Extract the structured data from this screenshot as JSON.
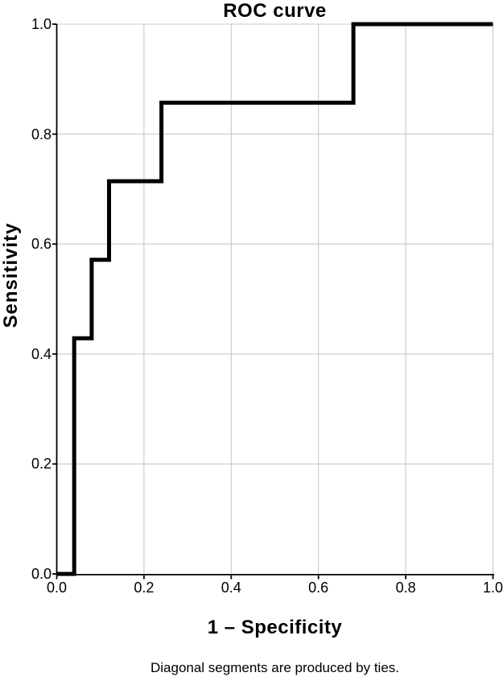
{
  "chart_data": {
    "type": "line",
    "subtype": "roc-step-curve",
    "title": "ROC curve",
    "xlabel": "1 – Specificity",
    "ylabel": "Sensitivity",
    "footnote": "Diagonal segments are produced by ties.",
    "x_tick_labels": [
      "0.0",
      "0.2",
      "0.4",
      "0.6",
      "0.8",
      "1.0"
    ],
    "y_tick_labels": [
      "0.0",
      "0.2",
      "0.4",
      "0.6",
      "0.8",
      "1.0"
    ],
    "xlim": [
      0.0,
      1.0
    ],
    "ylim": [
      0.0,
      1.0
    ],
    "grid": true,
    "legend_position": "none",
    "series": [
      {
        "name": "ROC curve",
        "points": [
          [
            0.0,
            0.0
          ],
          [
            0.04,
            0.0
          ],
          [
            0.04,
            0.4286
          ],
          [
            0.08,
            0.4286
          ],
          [
            0.08,
            0.5714
          ],
          [
            0.12,
            0.5714
          ],
          [
            0.12,
            0.7143
          ],
          [
            0.24,
            0.7143
          ],
          [
            0.24,
            0.8571
          ],
          [
            0.68,
            0.8571
          ],
          [
            0.68,
            1.0
          ],
          [
            1.0,
            1.0
          ]
        ]
      }
    ],
    "colors": {
      "curve": "#000000",
      "grid": "#c8c8c8",
      "axis": "#000000",
      "text": "#000000",
      "background": "#ffffff"
    }
  }
}
